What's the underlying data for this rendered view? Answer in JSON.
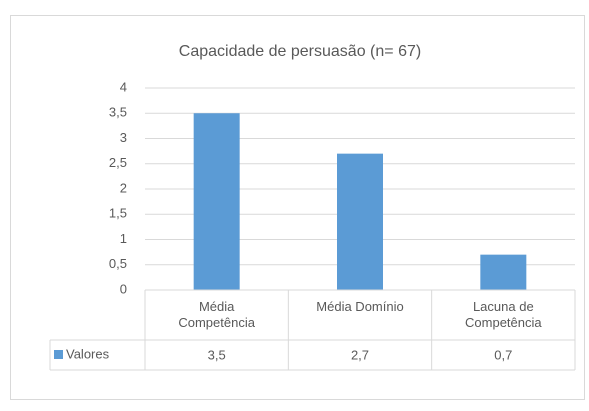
{
  "chart_data": {
    "type": "bar",
    "title": "Capacidade de persuasão (n= 67)",
    "categories": [
      "Média Competência",
      "Média Domínio",
      "Lacuna de Competência"
    ],
    "series": [
      {
        "name": "Valores",
        "color": "#5b9bd5",
        "values": [
          3.5,
          2.7,
          0.7
        ],
        "value_labels": [
          "3,5",
          "2,7",
          "0,7"
        ]
      }
    ],
    "ylim": [
      0,
      4
    ],
    "yticks": [
      0,
      {
        "value": 0.5,
        "label": "0,5"
      },
      1,
      {
        "value": 1.5,
        "label": "1,5"
      },
      2,
      {
        "value": 2.5,
        "label": "2,5"
      },
      3,
      {
        "value": 3.5,
        "label": "3,5"
      },
      4
    ],
    "grid": true,
    "data_table": true
  }
}
